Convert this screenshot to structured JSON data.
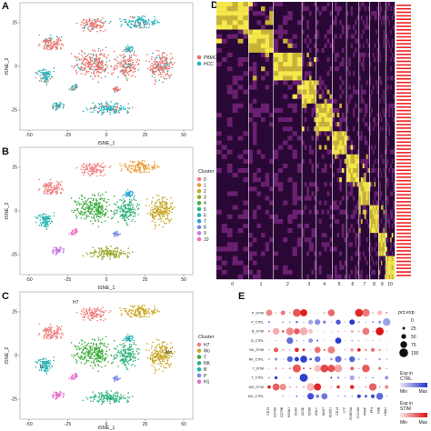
{
  "panels": {
    "A": {
      "label": "A",
      "xlabel": "tSNE_1",
      "ylabel": "tSNE_2",
      "xticks": [
        "-50",
        "-25",
        "0",
        "25",
        "50"
      ],
      "yticks": [
        "25",
        "0",
        "-25"
      ],
      "legend": [
        {
          "name": "PBMC",
          "color": "#e8736b"
        },
        {
          "name": "HCC",
          "color": "#1fb3bd"
        }
      ]
    },
    "B": {
      "label": "B",
      "xlabel": "tSNE_1",
      "ylabel": "tSNE_2",
      "xticks": [
        "-50",
        "-25",
        "0",
        "25",
        "50"
      ],
      "yticks": [
        "25",
        "0",
        "-25"
      ],
      "legend_title": "Cluster",
      "legend": [
        {
          "name": "0",
          "color": "#f08080"
        },
        {
          "name": "1",
          "color": "#e8a03a"
        },
        {
          "name": "2",
          "color": "#c8a828"
        },
        {
          "name": "3",
          "color": "#9aa82a"
        },
        {
          "name": "4",
          "color": "#3fae3f"
        },
        {
          "name": "5",
          "color": "#2fb37a"
        },
        {
          "name": "6",
          "color": "#22b3b0"
        },
        {
          "name": "7",
          "color": "#28a4d8"
        },
        {
          "name": "8",
          "color": "#7a8ae8"
        },
        {
          "name": "9",
          "color": "#c47ae0"
        },
        {
          "name": "10",
          "color": "#e86ec8"
        }
      ]
    },
    "C": {
      "label": "C",
      "xlabel": "tSNE_1",
      "ylabel": "tSNE_2",
      "xticks": [
        "-50",
        "-25",
        "0",
        "25",
        "50"
      ],
      "yticks": [
        "25",
        "0",
        "-25"
      ],
      "legend_title": "Cluster",
      "legend": [
        {
          "name": "H7",
          "color": "#f08080"
        },
        {
          "name": "Mo",
          "color": "#c8a828"
        },
        {
          "name": "T",
          "color": "#3fae3f"
        },
        {
          "name": "NK",
          "color": "#2fb37a"
        },
        {
          "name": "B",
          "color": "#22b3b0"
        },
        {
          "name": "P",
          "color": "#7a8ae8"
        },
        {
          "name": "H1",
          "color": "#e86ec8"
        }
      ],
      "annotations": [
        "Mo",
        "H7",
        "B"
      ]
    },
    "D": {
      "label": "D",
      "cluster_ticks": [
        "0",
        "1",
        "2",
        "3",
        "4",
        "5",
        "6",
        "7",
        "8",
        "9",
        "10"
      ]
    },
    "E": {
      "label": "E",
      "rows": [
        "P_STIM",
        "P_CTRL",
        "B_STIM",
        "B_CTRL",
        "NK_STIM",
        "NK_CTRL",
        "T_STIM",
        "T_CTRL",
        "MO_STIM",
        "MO_CTRL"
      ],
      "genes": [
        "CD74",
        "CD79A",
        "CD79B",
        "MS4A1",
        "CD3D",
        "CD3E",
        "CD8A",
        "GNLY",
        "NKG7",
        "KLRD1",
        "CD14",
        "LYZ",
        "FCGR3A",
        "S100A8",
        "PPBP",
        "PF4",
        "HBB",
        "HBA1"
      ],
      "size_legend_title": "pct.exp",
      "size_legend": [
        "0",
        "25",
        "50",
        "75",
        "100"
      ],
      "ctrl_legend_title_1": "Exp in",
      "ctrl_legend_title_2": "CTRL",
      "stim_legend_title_1": "Exp in",
      "stim_legend_title_2": "STIM",
      "min_label": "Min",
      "max_label": "Max",
      "ctrl_color": "#2233cc",
      "stim_color": "#dd1111"
    }
  }
}
